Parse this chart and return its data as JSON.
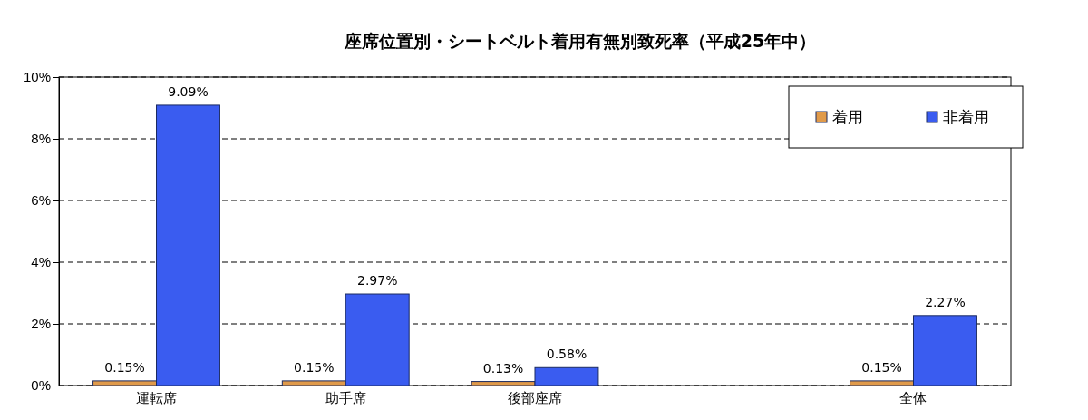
{
  "chart_data": {
    "type": "bar",
    "title": "座席位置別・シートベルト着用有無別致死率（平成25年中）",
    "categories": [
      "運転席",
      "助手席",
      "後部座席",
      null,
      "全体"
    ],
    "series": [
      {
        "name": "着用",
        "color": "#e09a4a",
        "values": [
          0.15,
          0.15,
          0.13,
          null,
          0.15
        ],
        "value_labels": [
          "0.15%",
          "0.15%",
          "0.13%",
          null,
          "0.15%"
        ]
      },
      {
        "name": "非着用",
        "color": "#3a5cf0",
        "values": [
          9.09,
          2.97,
          0.58,
          null,
          2.27
        ],
        "value_labels": [
          "9.09%",
          "2.97%",
          "0.58%",
          null,
          "2.27%"
        ]
      }
    ],
    "ylim": [
      0,
      10
    ],
    "yticks": [
      {
        "value": 0,
        "label": "0%"
      },
      {
        "value": 2,
        "label": "2%"
      },
      {
        "value": 4,
        "label": "4%"
      },
      {
        "value": 6,
        "label": "6%"
      },
      {
        "value": 8,
        "label": "8%"
      },
      {
        "value": 10,
        "label": "10%"
      }
    ],
    "grid": "y",
    "legend": "top right"
  }
}
